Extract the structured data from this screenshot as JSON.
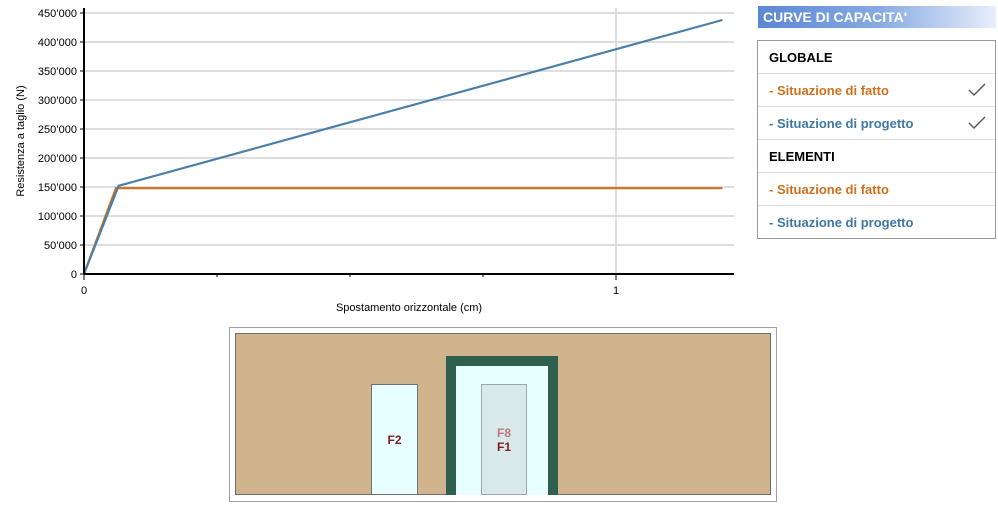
{
  "chart_data": {
    "type": "line",
    "xlabel": "Spostamento orizzontale (cm)",
    "ylabel": "Resistenza a taglio (N)",
    "xlim": [
      0,
      1.22
    ],
    "ylim": [
      0,
      450000
    ],
    "x_ticks": [
      "0",
      "1"
    ],
    "y_ticks": [
      "0",
      "50’000",
      "100’000",
      "150’000",
      "200’000",
      "250’000",
      "300’000",
      "350’000",
      "400’000",
      "450’000"
    ],
    "grid": "horizontal major + vertical at x=1",
    "series": [
      {
        "name": "Situazione di fatto",
        "color": "#d0701e",
        "x": [
          0,
          0.06,
          1.2
        ],
        "y": [
          0,
          148000,
          148000
        ]
      },
      {
        "name": "Situazione di progetto",
        "color": "#4a7fa8",
        "x": [
          0,
          0.065,
          1.2
        ],
        "y": [
          0,
          152000,
          438000
        ]
      }
    ]
  },
  "sidebar": {
    "title": "CURVE DI CAPACITA'",
    "sections": [
      {
        "label": "GLOBALE"
      },
      {
        "label": "- Situazione di fatto",
        "checked": true
      },
      {
        "label": "- Situazione di progetto",
        "checked": true
      },
      {
        "label": "ELEMENTI"
      },
      {
        "label": "- Situazione di fatto",
        "checked": false
      },
      {
        "label": "- Situazione di progetto",
        "checked": false
      }
    ]
  },
  "wall": {
    "openings": [
      {
        "label": "F2"
      },
      {
        "label_top": "F8",
        "label_bottom": "F1"
      }
    ]
  }
}
